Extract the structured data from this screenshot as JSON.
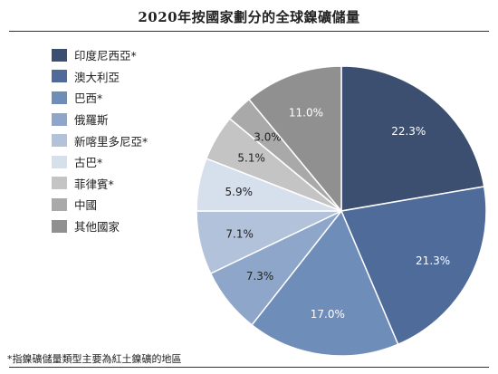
{
  "chart_data": {
    "type": "pie",
    "title": "2020年按國家劃分的全球鎳礦儲量",
    "legend_position": "left",
    "slices": [
      {
        "name": "印度尼西亞*",
        "value": 22.3,
        "label": "22.3%",
        "color": "#3c4f70",
        "label_color": "#ffffff"
      },
      {
        "name": "澳大利亞",
        "value": 21.3,
        "label": "21.3%",
        "color": "#4e6b9a",
        "label_color": "#ffffff"
      },
      {
        "name": "巴西*",
        "value": 17.0,
        "label": "17.0%",
        "color": "#6f8db9",
        "label_color": "#ffffff"
      },
      {
        "name": "俄羅斯",
        "value": 7.3,
        "label": "7.3%",
        "color": "#8ea6c9",
        "label_color": "#222222"
      },
      {
        "name": "新喀里多尼亞*",
        "value": 7.1,
        "label": "7.1%",
        "color": "#b2c2da",
        "label_color": "#222222"
      },
      {
        "name": "古巴*",
        "value": 5.9,
        "label": "5.9%",
        "color": "#d6dfec",
        "label_color": "#222222"
      },
      {
        "name": "菲律賓*",
        "value": 5.1,
        "label": "5.1%",
        "color": "#c4c4c4",
        "label_color": "#222222"
      },
      {
        "name": "中國",
        "value": 3.0,
        "label": "3.0%",
        "color": "#a9a9a9",
        "label_color": "#222222"
      },
      {
        "name": "其他國家",
        "value": 11.0,
        "label": "11.0%",
        "color": "#909090",
        "label_color": "#ffffff"
      }
    ]
  },
  "footnote": "*指鎳礦儲量類型主要為紅土鎳礦的地區"
}
